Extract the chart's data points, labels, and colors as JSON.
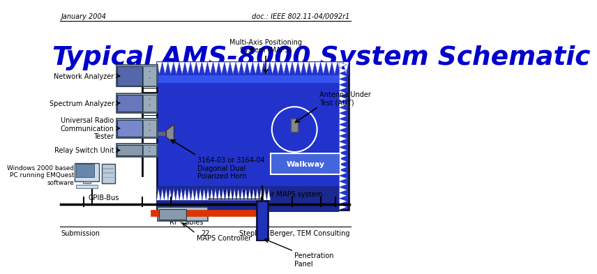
{
  "header_left": "January 2004",
  "header_right": "doc.: IEEE 802.11-04/0092r1",
  "title": "Typical AMS-8000 System Schematic",
  "title_color": "#0000CC",
  "footer_left": "Submission",
  "footer_center": "22",
  "footer_right": "Stephen Berger, TEM Consulting",
  "bg_color": "#FFFFFF",
  "labels": {
    "network_analyzer": "Network Analyzer",
    "spectrum_analyzer": "Spectrum Analyzer",
    "urct": "Universal Radio\nCommunication\nTester",
    "relay": "Relay Switch Unit",
    "windows": "Windows 2000 based\nPC running EMQuest\nsoftware",
    "rf_cables": "RF Cables",
    "gpib": "GPIB-Bus",
    "fiber": "Fiber Optics for MAPS system",
    "maps_ctrl": "MAPS Controller",
    "horn": "3164-03 or 3164-04\nDiagonal Dual\nPolarized Horn",
    "antenna": "Antenna Under\nTest (AUT)",
    "maps": "Multi-Axis Positioning\nSystem (MAPS)",
    "walkway": "Walkway",
    "penetration": "Penetration\nPanel"
  },
  "chamber_blue": "#2233CC",
  "chamber_dark": "#1122AA",
  "absorber_blue": "#3344DD",
  "absorber_white": "#FFFFFF",
  "floor_blue": "#1a2890",
  "walkway_blue": "#4466DD",
  "pen_panel_blue": "#2233BB",
  "red_cable": "#DD3300",
  "equip_bg": "#BBCCDD",
  "equip_screen": "#4455AA",
  "equip_border": "#334455"
}
